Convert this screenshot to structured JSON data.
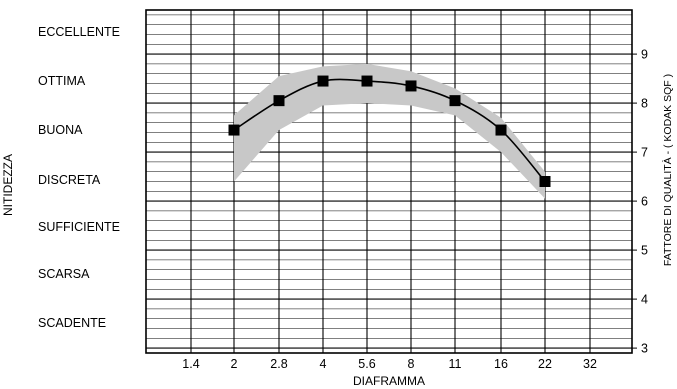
{
  "chart_data": {
    "type": "line",
    "xlabel": "DIAFRAMMA",
    "ylabel_left": "NITIDEZZA",
    "ylabel_right": "FATTORE DI QUALITÀ - ( KODAK SQF )",
    "x_ticks": [
      "1.4",
      "2",
      "2.8",
      "4",
      "5.6",
      "8",
      "11",
      "16",
      "22",
      "32"
    ],
    "left_categories": [
      "ECCELLENTE",
      "OTTIMA",
      "BUONA",
      "DISCRETA",
      "SUFFICIENTE",
      "SCARSA",
      "SCADENTE"
    ],
    "right_ticks": [
      "9",
      "8",
      "7",
      "6",
      "5",
      "4",
      "3"
    ],
    "ylim_right": [
      2.9,
      9.9
    ],
    "series": [
      {
        "x": [
          "2",
          "2.8",
          "4",
          "5.6",
          "8",
          "11",
          "16",
          "22"
        ],
        "values": [
          7.45,
          8.05,
          8.45,
          8.45,
          8.35,
          8.05,
          7.45,
          6.4
        ]
      }
    ],
    "band": {
      "upper": [
        7.75,
        8.55,
        8.75,
        8.8,
        8.65,
        8.3,
        7.7,
        6.6
      ],
      "lower": [
        6.4,
        7.45,
        7.95,
        8.0,
        7.95,
        7.75,
        7.0,
        6.05
      ]
    },
    "grid": true,
    "colors": {
      "line": "#000000",
      "marker": "#000000",
      "band": "#c8c8c8",
      "grid": "#000000"
    }
  }
}
